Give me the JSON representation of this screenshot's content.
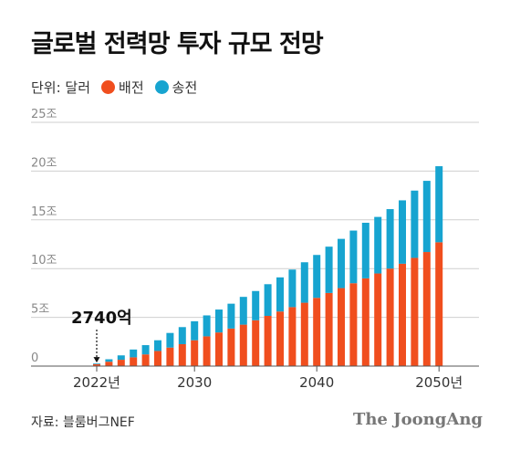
{
  "title": "글로벌 전력망 투자 규모 전망",
  "source": "자료: 블룸버그NEF",
  "brand": "The JoongAng",
  "colors": {
    "distribution": "#f04e1e",
    "transmission": "#17a4d0",
    "grid": "#cfcfcf",
    "tick": "#888888"
  },
  "chart_data": {
    "type": "bar",
    "stacked": true,
    "unit_label": "단위: 달러",
    "x": [
      2022,
      2023,
      2024,
      2025,
      2026,
      2027,
      2028,
      2029,
      2030,
      2031,
      2032,
      2033,
      2034,
      2035,
      2036,
      2037,
      2038,
      2039,
      2040,
      2041,
      2042,
      2043,
      2044,
      2045,
      2046,
      2047,
      2048,
      2049,
      2050
    ],
    "series": [
      {
        "name": "배전",
        "color": "#f04e1e",
        "values": [
          0.2,
          0.45,
          0.65,
          0.9,
          1.2,
          1.55,
          1.9,
          2.25,
          2.65,
          3.05,
          3.45,
          3.85,
          4.25,
          4.7,
          5.15,
          5.6,
          6.05,
          6.5,
          7.0,
          7.5,
          8.0,
          8.5,
          9.0,
          9.5,
          10.0,
          10.5,
          11.1,
          11.7,
          12.7
        ]
      },
      {
        "name": "송전",
        "color": "#17a4d0",
        "values": [
          0.07,
          0.25,
          0.45,
          0.8,
          0.95,
          1.1,
          1.5,
          1.75,
          1.95,
          2.15,
          2.35,
          2.55,
          2.85,
          3.0,
          3.25,
          3.5,
          3.85,
          4.15,
          4.4,
          4.75,
          5.05,
          5.4,
          5.7,
          5.8,
          6.1,
          6.5,
          6.9,
          7.3,
          7.8
        ]
      }
    ],
    "xticks": [
      {
        "value": 2022,
        "label": "2022년"
      },
      {
        "value": 2030,
        "label": "2030"
      },
      {
        "value": 2040,
        "label": "2040"
      },
      {
        "value": 2050,
        "label": "2050년"
      }
    ],
    "yticks": [
      {
        "value": 0,
        "label": "0"
      },
      {
        "value": 5,
        "label": "5조"
      },
      {
        "value": 10,
        "label": "10조"
      },
      {
        "value": 15,
        "label": "15조"
      },
      {
        "value": 20,
        "label": "20조"
      },
      {
        "value": 25,
        "label": "25조"
      }
    ],
    "ylim": [
      0,
      25
    ],
    "grid": true,
    "annotation": {
      "x": 2022,
      "label": "2740억"
    }
  }
}
